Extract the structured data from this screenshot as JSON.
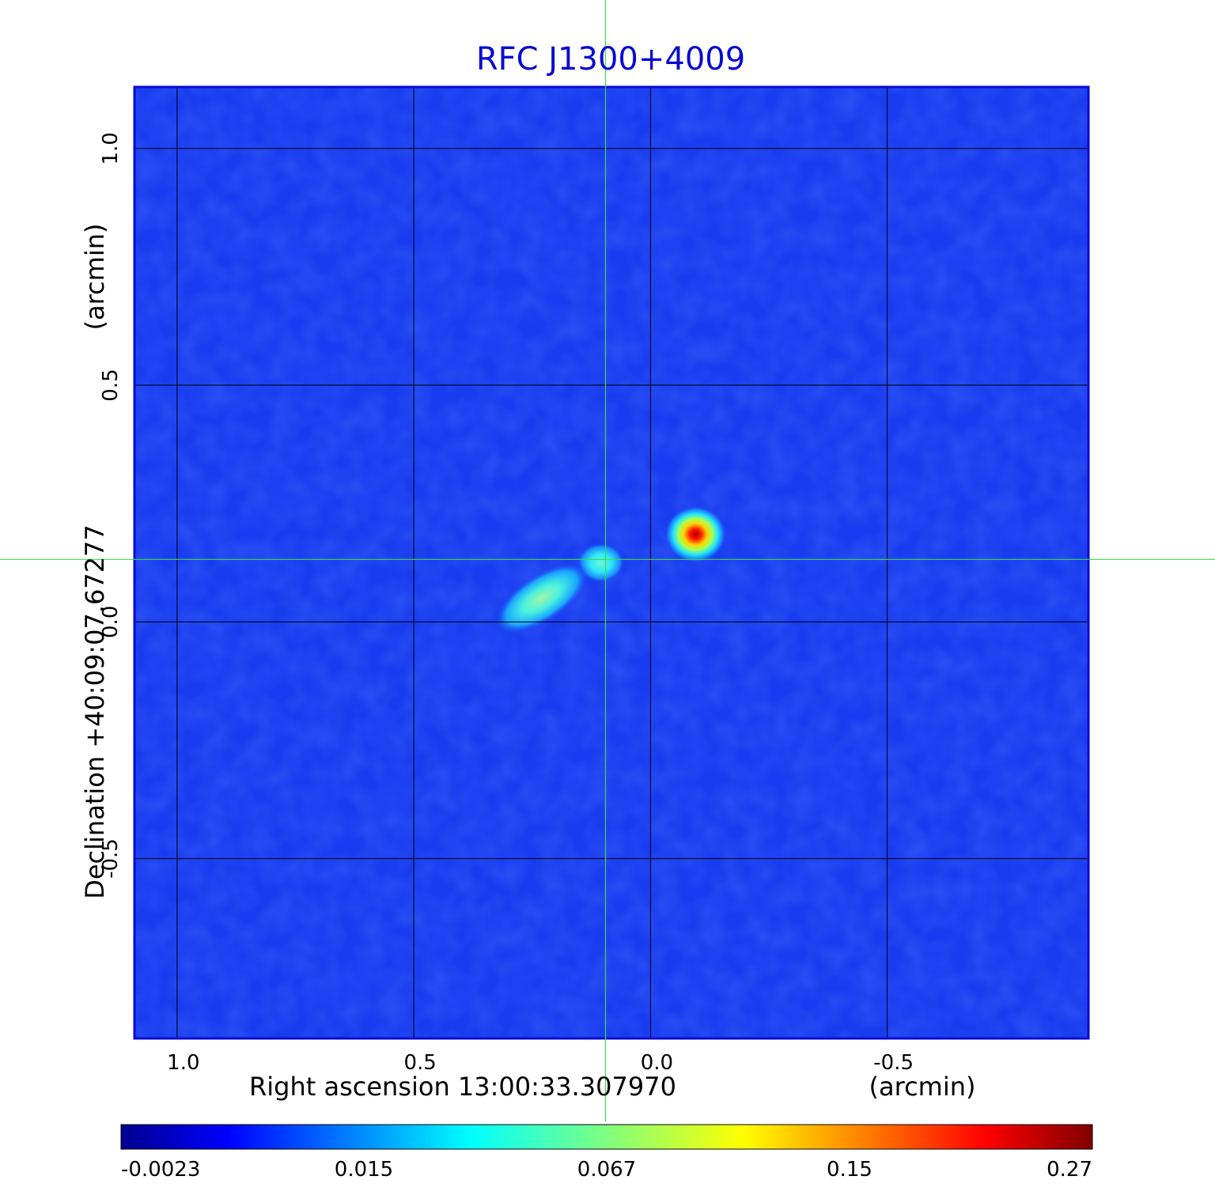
{
  "chart_data": {
    "type": "heatmap",
    "title": "RFC J1300+4009",
    "xlabel": "Right ascension  13:00:33.307970",
    "xlabel_unit": "(arcmin)",
    "ylabel": "Declination  +40:09:07.67277",
    "ylabel_unit": "(arcmin)",
    "x_ticks": [
      1.0,
      0.5,
      0.0,
      -0.5
    ],
    "x_tick_labels": [
      "1.0",
      "0.5",
      "0.0",
      "-0.5"
    ],
    "y_ticks": [
      1.0,
      0.5,
      0.0,
      -0.5
    ],
    "y_tick_labels": [
      "1.0",
      "0.5",
      "0.0",
      "-0.5"
    ],
    "xlim": [
      1.09,
      -0.925
    ],
    "ylim": [
      -0.88,
      1.13
    ],
    "grid": true,
    "crosshair": {
      "x": 0.095,
      "y": 0.132
    },
    "colorbar": {
      "colormap": "jet",
      "ticks": [
        -0.0023,
        0.015,
        0.067,
        0.15,
        0.27
      ],
      "tick_labels": [
        "-0.0023",
        "0.015",
        "0.067",
        "0.15",
        "0.27"
      ],
      "placement": "bottom"
    },
    "components": [
      {
        "x": -0.095,
        "y": 0.185,
        "peak": 0.27
      },
      {
        "x": 0.105,
        "y": 0.125,
        "peak": 0.04
      },
      {
        "x": 0.23,
        "y": 0.05,
        "peak": 0.06
      }
    ],
    "colors": {
      "title": "#0a0ad2",
      "crosshair": "#3ddc4a",
      "grid": "#000000",
      "frame": "#0a0ad2"
    }
  }
}
